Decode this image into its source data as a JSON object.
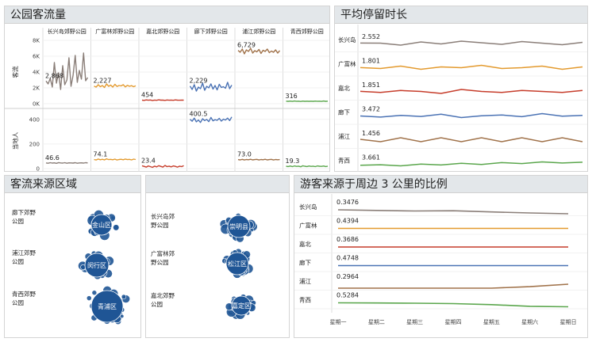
{
  "panels": {
    "traffic": {
      "title": "公园客流量"
    },
    "duration": {
      "title": "平均停留时长"
    },
    "source": {
      "title": "客流来源区域",
      "title2": ""
    },
    "ratio": {
      "title": "游客来源于周边 3 公里的比例"
    }
  },
  "colors": {
    "changxingdao": "#8a7e78",
    "guangfulin": "#e39a2e",
    "jiabei": "#c63c2a",
    "liaoxia": "#4a72b4",
    "pujiang": "#a0724a",
    "qingxi": "#5aa64c",
    "panel_title_bg": "#e3e7ea",
    "bubble": "#1f5595"
  },
  "chart_data": [
    {
      "type": "line",
      "title": "公园客流量",
      "parks": [
        "长兴岛郊野公园",
        "广富林郊野公园",
        "嘉北郊野公园",
        "廊下郊野公园",
        "浦江郊野公园",
        "青西郊野公园"
      ],
      "rows": [
        {
          "ylabel": "客流",
          "ylim": [
            0,
            8000
          ],
          "yticks": [
            "0K",
            "2K",
            "4K",
            "6K",
            "8K"
          ],
          "yticks_values": [
            0,
            2000,
            4000,
            6000,
            8000
          ],
          "series": [
            {
              "park": "长兴岛郊野公园",
              "label": "2,868",
              "values": [
                2868,
                2500,
                3200,
                2100,
                5200,
                2600,
                3900,
                1800,
                4800,
                2400,
                3000,
                5800,
                2200,
                3600,
                6100,
                2700,
                4200,
                3100,
                6400,
                2900,
                3300
              ]
            },
            {
              "park": "广富林郊野公园",
              "label": "2,227",
              "values": [
                2227,
                2100,
                2400,
                2150,
                2300,
                2050,
                2500,
                2200,
                2350,
                2100,
                2450,
                2180,
                2300,
                2250,
                2400,
                2120,
                2320,
                2200,
                2280,
                2150,
                2260
              ]
            },
            {
              "park": "嘉北郊野公园",
              "label": "454",
              "values": [
                454,
                420,
                480,
                440,
                470,
                410,
                460,
                430,
                490,
                445,
                455,
                420,
                470,
                440,
                460,
                430,
                480,
                450,
                440,
                460,
                455
              ]
            },
            {
              "park": "廊下郊野公园",
              "label": "2,229",
              "values": [
                2229,
                1800,
                2400,
                1600,
                2100,
                1900,
                2600,
                1700,
                2200,
                2000,
                2500,
                1850,
                2300,
                1750,
                2450,
                2050,
                2150,
                1950,
                2700,
                1900,
                2350
              ]
            },
            {
              "park": "浦江郊野公园",
              "label": "6,729",
              "values": [
                6729,
                6500,
                6900,
                6300,
                6800,
                6600,
                7000,
                6400,
                6700,
                6550,
                6850,
                6350,
                6750,
                6600,
                6900,
                6450,
                6650,
                6500,
                6800,
                6400,
                6700
              ]
            },
            {
              "park": "青西郊野公园",
              "label": "316",
              "values": [
                316,
                300,
                330,
                290,
                340,
                310,
                320,
                280,
                335,
                305,
                325,
                295,
                315,
                300,
                330,
                310,
                320,
                290,
                340,
                300,
                316
              ]
            }
          ]
        },
        {
          "ylabel": "当地人",
          "ylim": [
            0,
            450
          ],
          "yticks": [
            "0",
            "200",
            "400"
          ],
          "yticks_values": [
            0,
            200,
            400
          ],
          "series": [
            {
              "park": "长兴岛郊野公园",
              "label": "46.6",
              "values": [
                46.6,
                44,
                48,
                45,
                47,
                43,
                49,
                46,
                45,
                48,
                44,
                47,
                46,
                45,
                48,
                44,
                46,
                47,
                45,
                48,
                46
              ]
            },
            {
              "park": "广富林郊野公园",
              "label": "74.1",
              "values": [
                74.1,
                70,
                78,
                72,
                76,
                71,
                80,
                73,
                75,
                72,
                77,
                70,
                74,
                76,
                72,
                78,
                73,
                75,
                71,
                77,
                74
              ]
            },
            {
              "park": "嘉北郊野公园",
              "label": "23.4",
              "values": [
                23.4,
                18,
                12,
                22,
                16,
                10,
                20,
                14,
                24,
                18,
                12,
                26,
                16,
                20,
                14,
                22,
                18,
                12,
                20,
                16,
                24
              ]
            },
            {
              "park": "廊下郊野公园",
              "label": "400.5",
              "values": [
                400.5,
                385,
                410,
                380,
                395,
                375,
                405,
                390,
                400,
                382,
                415,
                388,
                398,
                392,
                408,
                386,
                402,
                395,
                410,
                390,
                420
              ]
            },
            {
              "park": "浦江郊野公园",
              "label": "73.0",
              "values": [
                73.0,
                71,
                75,
                70,
                74,
                72,
                76,
                71,
                73,
                75,
                70,
                74,
                72,
                76,
                71,
                73,
                75,
                70,
                74,
                72,
                73
              ]
            },
            {
              "park": "青西郊野公园",
              "label": "19.3",
              "values": [
                19.3,
                17,
                21,
                16,
                22,
                18,
                20,
                15,
                23,
                19,
                17,
                21,
                18,
                20,
                16,
                22,
                19,
                18,
                21,
                17,
                20
              ]
            }
          ]
        }
      ]
    },
    {
      "type": "line",
      "title": "平均停留时长",
      "series": [
        {
          "name": "长兴岛",
          "label": "2.552",
          "values": [
            2.552,
            2.55,
            2.5,
            2.58,
            2.53,
            2.6,
            2.56,
            2.52,
            2.59,
            2.55,
            2.51,
            2.57
          ]
        },
        {
          "name": "广富林",
          "label": "1.801",
          "values": [
            1.801,
            1.79,
            1.82,
            1.78,
            1.81,
            1.8,
            1.83,
            1.79,
            1.8,
            1.82,
            1.78,
            1.81
          ]
        },
        {
          "name": "嘉北",
          "label": "1.851",
          "values": [
            1.851,
            1.84,
            1.86,
            1.85,
            1.83,
            1.87,
            1.85,
            1.84,
            1.86,
            1.85,
            1.84,
            1.86
          ]
        },
        {
          "name": "廊下",
          "label": "3.472",
          "values": [
            3.472,
            3.42,
            3.5,
            3.45,
            3.55,
            3.4,
            3.48,
            3.52,
            3.44,
            3.58,
            3.46,
            3.5
          ]
        },
        {
          "name": "浦江",
          "label": "1.456",
          "values": [
            1.456,
            1.45,
            1.46,
            1.45,
            1.46,
            1.45,
            1.46,
            1.45,
            1.46,
            1.45,
            1.46,
            1.45
          ]
        },
        {
          "name": "青西",
          "label": "3.661",
          "values": [
            3.661,
            3.7,
            3.62,
            3.75,
            3.68,
            3.8,
            3.72,
            3.85,
            3.78,
            3.9,
            3.82,
            3.88
          ]
        }
      ]
    },
    {
      "type": "line",
      "title": "游客来源于周边 3 公里的比例",
      "x": [
        "星期一",
        "星期二",
        "星期三",
        "星期四",
        "星期五",
        "星期六",
        "星期日"
      ],
      "series": [
        {
          "name": "长兴岛",
          "label": "0.3476",
          "values": [
            0.3476,
            0.3472,
            0.3468,
            0.347,
            0.3462,
            0.3455,
            0.345
          ]
        },
        {
          "name": "广富林",
          "label": "0.4394",
          "values": [
            0.4394,
            0.4394,
            0.4394,
            0.4394,
            0.4394,
            0.4394,
            0.4394
          ]
        },
        {
          "name": "嘉北",
          "label": "0.3686",
          "values": [
            0.3686,
            0.3686,
            0.3686,
            0.3686,
            0.3686,
            0.3686,
            0.3686
          ]
        },
        {
          "name": "廊下",
          "label": "0.4748",
          "values": [
            0.4748,
            0.4748,
            0.4748,
            0.4748,
            0.4748,
            0.4748,
            0.4748
          ]
        },
        {
          "name": "浦江",
          "label": "0.2964",
          "values": [
            0.2964,
            0.2964,
            0.2964,
            0.2964,
            0.2964,
            0.297,
            0.298
          ]
        },
        {
          "name": "青西",
          "label": "0.5284",
          "values": [
            0.5284,
            0.5282,
            0.5278,
            0.5272,
            0.5255,
            0.523,
            0.5222
          ]
        }
      ]
    }
  ],
  "source_map": {
    "left": [
      {
        "park": "廊下郊野公园",
        "district": "金山区"
      },
      {
        "park": "浦江郊野公园",
        "district": "闵行区"
      },
      {
        "park": "青西郊野公园",
        "district": "青浦区"
      }
    ],
    "right": [
      {
        "park": "长兴岛郊野公园",
        "district": "崇明县"
      },
      {
        "park": "广富林郊野公园",
        "district": "松江区"
      },
      {
        "park": "嘉北郊野公园",
        "district": "嘉定区"
      }
    ]
  }
}
